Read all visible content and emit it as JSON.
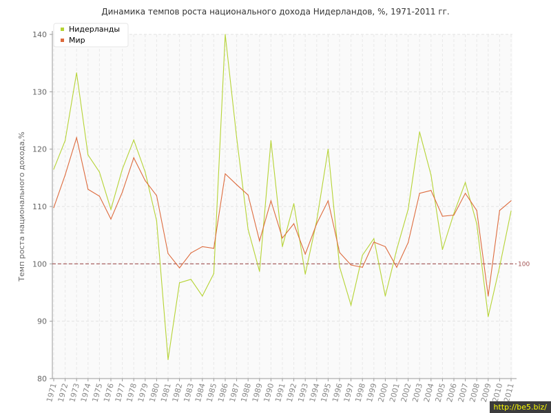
{
  "chart_data": {
    "type": "line",
    "title": "Динамика темпов роста национального дохода Нидерландов, %, 1971-2011 гг.",
    "ylabel": "Темп роста национального дохода,%",
    "xlabel": "",
    "ylim": [
      80,
      140
    ],
    "yticks": [
      80,
      90,
      100,
      110,
      120,
      130,
      140
    ],
    "grid": true,
    "legend_position": "top-left",
    "x": [
      "1971",
      "1972",
      "1973",
      "1974",
      "1975",
      "1976",
      "1977",
      "1978",
      "1979",
      "1980",
      "1981",
      "1982",
      "1983",
      "1984",
      "1985",
      "1986",
      "1987",
      "1988",
      "1989",
      "1990",
      "1991",
      "1992",
      "1993",
      "1994",
      "1995",
      "1996",
      "1997",
      "1998",
      "1999",
      "2000",
      "2001",
      "2002",
      "2003",
      "2004",
      "2005",
      "2006",
      "2007",
      "2008",
      "2009",
      "2010",
      "2011"
    ],
    "series": [
      {
        "name": "Нидерланды",
        "color": "#b5d333",
        "values": [
          116.5,
          121.5,
          133.3,
          119.0,
          116.0,
          109.5,
          116.5,
          121.6,
          116.0,
          107.5,
          83.3,
          96.7,
          97.3,
          94.4,
          98.3,
          140.0,
          122.0,
          106.0,
          98.7,
          121.5,
          103.0,
          110.5,
          98.2,
          107.5,
          120.0,
          99.5,
          92.8,
          101.5,
          104.4,
          94.4,
          102.5,
          109.5,
          123.0,
          115.5,
          102.5,
          108.8,
          114.2,
          107.0,
          90.8,
          99.5,
          109.2
        ]
      },
      {
        "name": "Мир",
        "color": "#dd6a3c",
        "values": [
          109.8,
          115.5,
          122.0,
          113.0,
          111.8,
          107.8,
          112.5,
          118.5,
          114.5,
          111.9,
          101.8,
          99.3,
          101.9,
          103.0,
          102.7,
          115.7,
          113.8,
          112.0,
          104.0,
          111.0,
          104.5,
          107.0,
          101.7,
          107.0,
          111.0,
          102.0,
          99.8,
          99.4,
          103.8,
          103.0,
          99.4,
          103.7,
          112.3,
          112.8,
          108.3,
          108.5,
          112.3,
          109.3,
          94.4,
          109.3,
          111.0
        ]
      }
    ],
    "reference_line": {
      "value": 100,
      "label": "100",
      "color": "#a05050"
    }
  },
  "watermark": "http://be5.biz/"
}
